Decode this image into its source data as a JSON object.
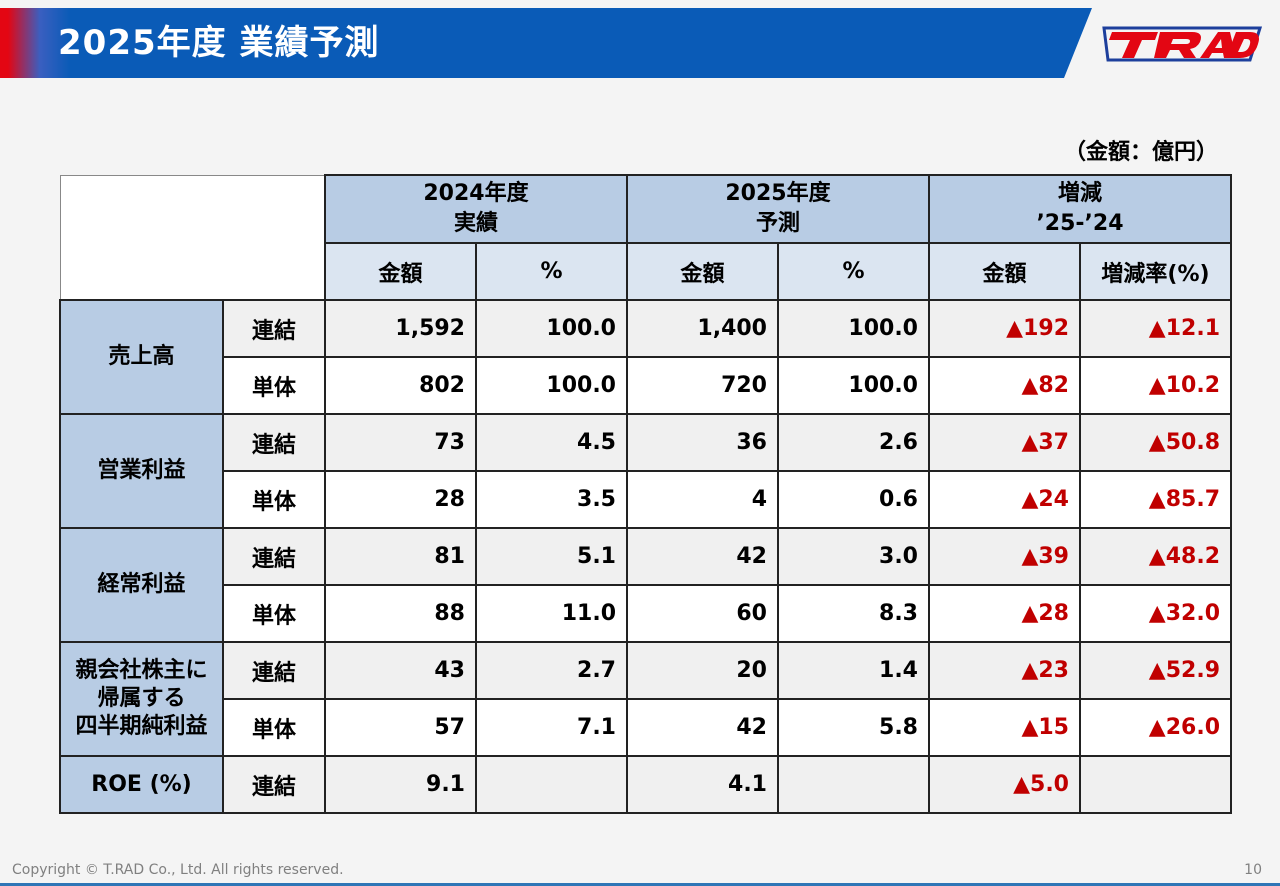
{
  "header": {
    "title": "2025年度 業績予測"
  },
  "logo": {
    "text": "T.RAD",
    "colors": {
      "red": "#e30613",
      "blue": "#1d3f9c"
    }
  },
  "unit_note": "（金額：億円）",
  "table": {
    "groups": [
      {
        "line1": "2024年度",
        "line2": "実績"
      },
      {
        "line1": "2025年度",
        "line2": "予測"
      },
      {
        "line1": "増減",
        "line2": "’25-’24"
      }
    ],
    "subheaders": [
      "金額",
      "%",
      "金額",
      "%",
      "金額",
      "増減率(%)"
    ],
    "categories": [
      {
        "label": "売上高",
        "rows": [
          {
            "kind": "連結",
            "v": [
              "1,592",
              "100.0",
              "1,400",
              "100.0",
              "▲192",
              "▲12.1"
            ]
          },
          {
            "kind": "単体",
            "v": [
              "802",
              "100.0",
              "720",
              "100.0",
              "▲82",
              "▲10.2"
            ]
          }
        ]
      },
      {
        "label": "営業利益",
        "rows": [
          {
            "kind": "連結",
            "v": [
              "73",
              "4.5",
              "36",
              "2.6",
              "▲37",
              "▲50.8"
            ]
          },
          {
            "kind": "単体",
            "v": [
              "28",
              "3.5",
              "4",
              "0.6",
              "▲24",
              "▲85.7"
            ]
          }
        ]
      },
      {
        "label": "経常利益",
        "rows": [
          {
            "kind": "連結",
            "v": [
              "81",
              "5.1",
              "42",
              "3.0",
              "▲39",
              "▲48.2"
            ]
          },
          {
            "kind": "単体",
            "v": [
              "88",
              "11.0",
              "60",
              "8.3",
              "▲28",
              "▲32.0"
            ]
          }
        ]
      },
      {
        "label_lines": [
          "親会社株主に",
          "帰属する",
          "四半期純利益"
        ],
        "rows": [
          {
            "kind": "連結",
            "v": [
              "43",
              "2.7",
              "20",
              "1.4",
              "▲23",
              "▲52.9"
            ]
          },
          {
            "kind": "単体",
            "v": [
              "57",
              "7.1",
              "42",
              "5.8",
              "▲15",
              "▲26.0"
            ]
          }
        ]
      },
      {
        "label": "ROE (%)",
        "rows": [
          {
            "kind": "連結",
            "v": [
              "9.1",
              "",
              "4.1",
              "",
              "▲5.0",
              ""
            ]
          }
        ]
      }
    ]
  },
  "colors": {
    "title_blue": "#0a5bb7",
    "header_blue": "#b8cce4",
    "subheader_blue": "#dbe5f1",
    "negative_red": "#c00000"
  },
  "footer": {
    "copyright": "Copyright © T.RAD Co., Ltd. All rights reserved.",
    "page": "10"
  }
}
